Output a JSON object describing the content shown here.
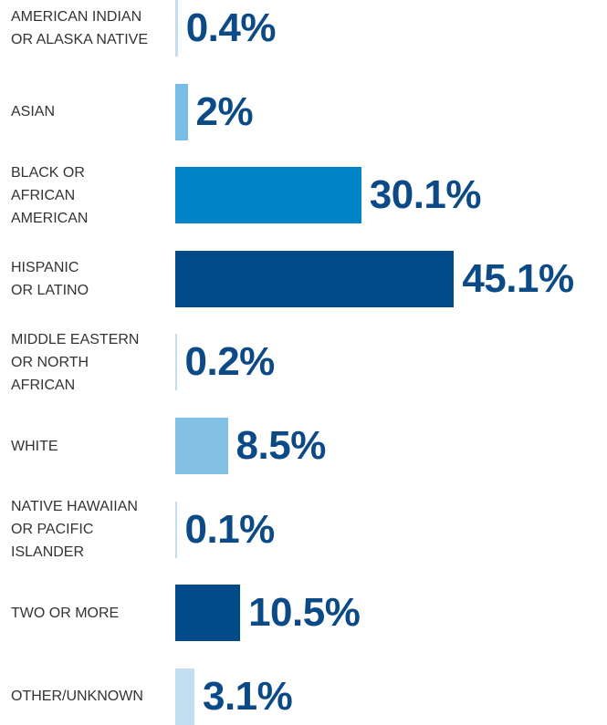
{
  "chart_data": {
    "type": "bar",
    "orientation": "horizontal",
    "categories": [
      "AMERICAN INDIAN\nOR ALASKA NATIVE",
      "ASIAN",
      "BLACK OR\nAFRICAN\nAMERICAN",
      "HISPANIC\nOR LATINO",
      "MIDDLE EASTERN\nOR NORTH\nAFRICAN",
      "WHITE",
      "NATIVE HAWAIIAN\nOR PACIFIC\nISLANDER",
      "TWO OR MORE",
      "OTHER/UNKNOWN"
    ],
    "values": [
      0.4,
      2,
      30.1,
      45.1,
      0.2,
      8.5,
      0.1,
      10.5,
      3.1
    ],
    "value_labels": [
      "0.4%",
      "2%",
      "30.1%",
      "45.1%",
      "0.2%",
      "8.5%",
      "0.1%",
      "10.5%",
      "3.1%"
    ],
    "colors": [
      "#c4def1",
      "#78bde3",
      "#0084c8",
      "#004a87",
      "#c4def1",
      "#82c1e4",
      "#c4def1",
      "#004a87",
      "#c4def1"
    ]
  }
}
